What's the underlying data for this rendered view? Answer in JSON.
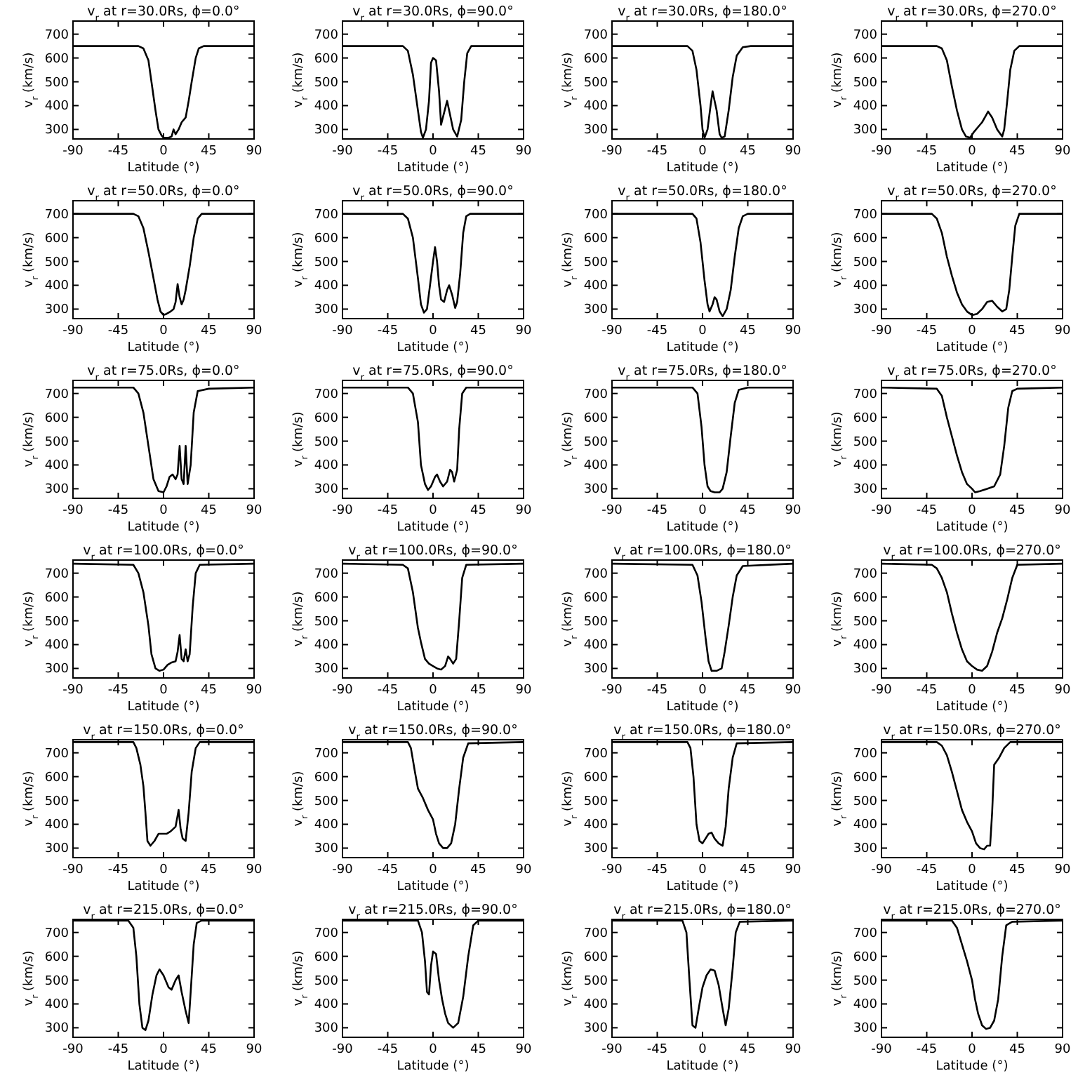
{
  "chart_data": [
    {
      "type": "line",
      "title": "v$_{r}$ at r=30.0Rs, ϕ=0.0°",
      "xlabel": "Latitude (°)",
      "ylabel": "v$_{r}$ (km/s)",
      "xlim": [
        -90,
        90
      ],
      "ylim": [
        260,
        755
      ],
      "xticks": [
        -90,
        -45,
        0,
        45,
        90
      ],
      "yticks": [
        300,
        400,
        500,
        600,
        700
      ],
      "color": "#000000",
      "x": [
        -90,
        -25,
        -20,
        -15,
        -12,
        -8,
        -5,
        -2,
        0,
        5,
        8,
        10,
        12,
        15,
        18,
        22,
        25,
        28,
        32,
        35,
        40,
        90
      ],
      "values": [
        650,
        650,
        640,
        590,
        500,
        380,
        300,
        275,
        265,
        265,
        270,
        300,
        280,
        300,
        330,
        350,
        420,
        500,
        600,
        640,
        650,
        650
      ]
    },
    {
      "type": "line",
      "title": "v$_{r}$ at r=30.0Rs, ϕ=90.0°",
      "xlabel": "Latitude (°)",
      "ylabel": "v$_{r}$ (km/s)",
      "xlim": [
        -90,
        90
      ],
      "ylim": [
        260,
        755
      ],
      "xticks": [
        -90,
        -45,
        0,
        45,
        90
      ],
      "yticks": [
        300,
        400,
        500,
        600,
        700
      ],
      "color": "#000000",
      "x": [
        -90,
        -30,
        -25,
        -20,
        -15,
        -12,
        -10,
        -7,
        -4,
        -2,
        0,
        3,
        6,
        8,
        11,
        14,
        17,
        20,
        24,
        28,
        31,
        34,
        38,
        90
      ],
      "values": [
        650,
        650,
        630,
        530,
        380,
        290,
        265,
        300,
        420,
        580,
        600,
        590,
        460,
        320,
        370,
        420,
        360,
        300,
        270,
        340,
        500,
        620,
        650,
        650
      ]
    },
    {
      "type": "line",
      "title": "v$_{r}$ at r=30.0Rs, ϕ=180.0°",
      "xlabel": "Latitude (°)",
      "ylabel": "v$_{r}$ (km/s)",
      "xlim": [
        -90,
        90
      ],
      "ylim": [
        260,
        755
      ],
      "xticks": [
        -90,
        -45,
        0,
        45,
        90
      ],
      "yticks": [
        300,
        400,
        500,
        600,
        700
      ],
      "color": "#000000",
      "x": [
        -90,
        -15,
        -10,
        -6,
        -2,
        0,
        2,
        5,
        8,
        10,
        12,
        14,
        17,
        19,
        22,
        26,
        30,
        34,
        40,
        48,
        90
      ],
      "values": [
        650,
        650,
        630,
        550,
        400,
        300,
        265,
        300,
        400,
        460,
        420,
        380,
        280,
        265,
        270,
        380,
        520,
        610,
        645,
        650,
        650
      ]
    },
    {
      "type": "line",
      "title": "v$_{r}$ at r=30.0Rs, ϕ=270.0°",
      "xlabel": "Latitude (°)",
      "ylabel": "v$_{r}$ (km/s)",
      "xlim": [
        -90,
        90
      ],
      "ylim": [
        260,
        755
      ],
      "xticks": [
        -90,
        -45,
        0,
        45,
        90
      ],
      "yticks": [
        300,
        400,
        500,
        600,
        700
      ],
      "color": "#000000",
      "x": [
        -90,
        -35,
        -30,
        -25,
        -20,
        -15,
        -10,
        -6,
        -2,
        2,
        6,
        10,
        14,
        16,
        20,
        25,
        30,
        32,
        35,
        38,
        42,
        47,
        90
      ],
      "values": [
        650,
        650,
        640,
        590,
        480,
        380,
        300,
        270,
        265,
        290,
        310,
        330,
        360,
        375,
        350,
        300,
        270,
        300,
        420,
        550,
        630,
        650,
        650
      ]
    },
    {
      "type": "line",
      "title": "v$_{r}$ at r=50.0Rs, ϕ=0.0°",
      "xlabel": "Latitude (°)",
      "ylabel": "v$_{r}$ (km/s)",
      "xlim": [
        -90,
        90
      ],
      "ylim": [
        260,
        755
      ],
      "xticks": [
        -90,
        -45,
        0,
        45,
        90
      ],
      "yticks": [
        300,
        400,
        500,
        600,
        700
      ],
      "color": "#000000",
      "x": [
        -90,
        -30,
        -25,
        -20,
        -15,
        -10,
        -6,
        -3,
        0,
        3,
        7,
        10,
        12,
        14,
        16,
        18,
        20,
        22,
        26,
        30,
        34,
        38,
        90
      ],
      "values": [
        700,
        700,
        690,
        640,
        540,
        430,
        340,
        290,
        275,
        280,
        290,
        300,
        330,
        405,
        350,
        320,
        340,
        380,
        480,
        600,
        680,
        700,
        700
      ]
    },
    {
      "type": "line",
      "title": "v$_{r}$ at r=50.0Rs, ϕ=90.0°",
      "xlabel": "Latitude (°)",
      "ylabel": "v$_{r}$ (km/s)",
      "xlim": [
        -90,
        90
      ],
      "ylim": [
        260,
        755
      ],
      "xticks": [
        -90,
        -45,
        0,
        45,
        90
      ],
      "yticks": [
        300,
        400,
        500,
        600,
        700
      ],
      "color": "#000000",
      "x": [
        -90,
        -30,
        -25,
        -20,
        -15,
        -12,
        -9,
        -6,
        -3,
        0,
        2,
        4,
        6,
        8,
        11,
        14,
        16,
        19,
        22,
        24,
        27,
        30,
        33,
        37,
        90
      ],
      "values": [
        700,
        700,
        680,
        600,
        430,
        320,
        285,
        300,
        400,
        500,
        560,
        500,
        400,
        340,
        330,
        380,
        400,
        360,
        305,
        330,
        450,
        620,
        690,
        700,
        700
      ]
    },
    {
      "type": "line",
      "title": "v$_{r}$ at r=50.0Rs, ϕ=180.0°",
      "xlabel": "Latitude (°)",
      "ylabel": "v$_{r}$ (km/s)",
      "xlim": [
        -90,
        90
      ],
      "ylim": [
        260,
        755
      ],
      "xticks": [
        -90,
        -45,
        0,
        45,
        90
      ],
      "yticks": [
        300,
        400,
        500,
        600,
        700
      ],
      "color": "#000000",
      "x": [
        -90,
        -10,
        -6,
        -2,
        2,
        5,
        7,
        10,
        12,
        14,
        17,
        20,
        24,
        28,
        32,
        36,
        40,
        45,
        90
      ],
      "values": [
        700,
        700,
        680,
        580,
        420,
        320,
        290,
        320,
        350,
        340,
        290,
        270,
        300,
        380,
        520,
        640,
        690,
        700,
        700
      ]
    },
    {
      "type": "line",
      "title": "v$_{r}$ at r=50.0Rs, ϕ=270.0°",
      "xlabel": "Latitude (°)",
      "ylabel": "v$_{r}$ (km/s)",
      "xlim": [
        -90,
        90
      ],
      "ylim": [
        260,
        755
      ],
      "xticks": [
        -90,
        -45,
        0,
        45,
        90
      ],
      "yticks": [
        300,
        400,
        500,
        600,
        700
      ],
      "color": "#000000",
      "x": [
        -90,
        -40,
        -35,
        -30,
        -25,
        -20,
        -15,
        -10,
        -5,
        0,
        5,
        10,
        15,
        20,
        25,
        30,
        34,
        37,
        40,
        43,
        47,
        90
      ],
      "values": [
        700,
        700,
        680,
        620,
        520,
        440,
        370,
        320,
        290,
        275,
        280,
        300,
        330,
        335,
        310,
        290,
        300,
        380,
        520,
        650,
        700,
        700
      ]
    },
    {
      "type": "line",
      "title": "v$_{r}$ at r=75.0Rs, ϕ=0.0°",
      "xlabel": "Latitude (°)",
      "ylabel": "v$_{r}$ (km/s)",
      "xlim": [
        -90,
        90
      ],
      "ylim": [
        260,
        755
      ],
      "xticks": [
        -90,
        -45,
        0,
        45,
        90
      ],
      "yticks": [
        300,
        400,
        500,
        600,
        700
      ],
      "color": "#000000",
      "x": [
        -90,
        -30,
        -25,
        -20,
        -15,
        -10,
        -5,
        0,
        3,
        6,
        9,
        12,
        14,
        16,
        18,
        20,
        22,
        24,
        27,
        30,
        34,
        45,
        90
      ],
      "values": [
        725,
        725,
        700,
        620,
        480,
        340,
        290,
        285,
        310,
        350,
        360,
        340,
        360,
        480,
        340,
        320,
        480,
        320,
        400,
        620,
        710,
        720,
        725
      ]
    },
    {
      "type": "line",
      "title": "v$_{r}$ at r=75.0Rs, ϕ=90.0°",
      "xlabel": "Latitude (°)",
      "ylabel": "v$_{r}$ (km/s)",
      "xlim": [
        -90,
        90
      ],
      "ylim": [
        260,
        755
      ],
      "xticks": [
        -90,
        -45,
        0,
        45,
        90
      ],
      "yticks": [
        300,
        400,
        500,
        600,
        700
      ],
      "color": "#000000",
      "x": [
        -90,
        -25,
        -20,
        -15,
        -12,
        -8,
        -5,
        -2,
        2,
        4,
        7,
        10,
        14,
        17,
        19,
        21,
        24,
        26,
        29,
        33,
        90
      ],
      "values": [
        725,
        725,
        700,
        580,
        400,
        320,
        295,
        310,
        350,
        360,
        330,
        310,
        330,
        380,
        370,
        330,
        380,
        550,
        700,
        725,
        725
      ]
    },
    {
      "type": "line",
      "title": "v$_{r}$ at r=75.0Rs, ϕ=180.0°",
      "xlabel": "Latitude (°)",
      "ylabel": "v$_{r}$ (km/s)",
      "xlim": [
        -90,
        90
      ],
      "ylim": [
        260,
        755
      ],
      "xticks": [
        -90,
        -45,
        0,
        45,
        90
      ],
      "yticks": [
        300,
        400,
        500,
        600,
        700
      ],
      "color": "#000000",
      "x": [
        -90,
        -10,
        -5,
        -1,
        2,
        5,
        8,
        12,
        17,
        20,
        24,
        28,
        32,
        36,
        45,
        90
      ],
      "values": [
        725,
        725,
        700,
        560,
        400,
        310,
        290,
        285,
        285,
        300,
        370,
        520,
        660,
        715,
        725,
        725
      ]
    },
    {
      "type": "line",
      "title": "v$_{r}$ at r=75.0Rs, ϕ=270.0°",
      "xlabel": "Latitude (°)",
      "ylabel": "v$_{r}$ (km/s)",
      "xlim": [
        -90,
        90
      ],
      "ylim": [
        260,
        755
      ],
      "xticks": [
        -90,
        -45,
        0,
        45,
        90
      ],
      "yticks": [
        300,
        400,
        500,
        600,
        700
      ],
      "color": "#000000",
      "x": [
        -90,
        -35,
        -30,
        -25,
        -20,
        -15,
        -10,
        -5,
        0,
        3,
        8,
        15,
        22,
        28,
        32,
        36,
        40,
        45,
        90
      ],
      "values": [
        725,
        720,
        690,
        600,
        520,
        440,
        370,
        320,
        300,
        285,
        290,
        300,
        310,
        360,
        480,
        640,
        710,
        720,
        725
      ]
    },
    {
      "type": "line",
      "title": "v$_{r}$ at r=100.0Rs, ϕ=0.0°",
      "xlabel": "Latitude (°)",
      "ylabel": "v$_{r}$ (km/s)",
      "xlim": [
        -90,
        90
      ],
      "ylim": [
        260,
        755
      ],
      "xticks": [
        -90,
        -45,
        0,
        45,
        90
      ],
      "yticks": [
        300,
        400,
        500,
        600,
        700
      ],
      "color": "#000000",
      "x": [
        -90,
        -30,
        -25,
        -20,
        -15,
        -12,
        -8,
        -4,
        0,
        4,
        8,
        12,
        14,
        16,
        18,
        20,
        22,
        24,
        26,
        29,
        32,
        36,
        90
      ],
      "values": [
        740,
        735,
        700,
        620,
        480,
        360,
        300,
        290,
        295,
        315,
        325,
        330,
        370,
        440,
        340,
        330,
        380,
        330,
        360,
        560,
        700,
        735,
        740
      ]
    },
    {
      "type": "line",
      "title": "v$_{r}$ at r=100.0Rs, ϕ=90.0°",
      "xlabel": "Latitude (°)",
      "ylabel": "v$_{r}$ (km/s)",
      "xlim": [
        -90,
        90
      ],
      "ylim": [
        260,
        755
      ],
      "xticks": [
        -90,
        -45,
        0,
        45,
        90
      ],
      "yticks": [
        300,
        400,
        500,
        600,
        700
      ],
      "color": "#000000",
      "x": [
        -90,
        -30,
        -25,
        -20,
        -15,
        -12,
        -8,
        -4,
        0,
        4,
        8,
        12,
        15,
        17,
        20,
        23,
        26,
        29,
        33,
        90
      ],
      "values": [
        740,
        735,
        720,
        620,
        470,
        410,
        340,
        320,
        310,
        300,
        295,
        310,
        350,
        340,
        320,
        340,
        500,
        680,
        735,
        740
      ]
    },
    {
      "type": "line",
      "title": "v$_{r}$ at r=100.0Rs, ϕ=180.0°",
      "xlabel": "Latitude (°)",
      "ylabel": "v$_{r}$ (km/s)",
      "xlim": [
        -90,
        90
      ],
      "ylim": [
        260,
        755
      ],
      "xticks": [
        -90,
        -45,
        0,
        45,
        90
      ],
      "yticks": [
        300,
        400,
        500,
        600,
        700
      ],
      "color": "#000000",
      "x": [
        -90,
        -10,
        -5,
        -1,
        3,
        6,
        9,
        14,
        19,
        22,
        26,
        30,
        34,
        40,
        90
      ],
      "values": [
        740,
        735,
        690,
        580,
        430,
        330,
        290,
        290,
        300,
        370,
        480,
        600,
        690,
        730,
        740
      ]
    },
    {
      "type": "line",
      "title": "v$_{r}$ at r=100.0Rs, ϕ=270.0°",
      "xlabel": "Latitude (°)",
      "ylabel": "v$_{r}$ (km/s)",
      "xlim": [
        -90,
        90
      ],
      "ylim": [
        260,
        755
      ],
      "xticks": [
        -90,
        -45,
        0,
        45,
        90
      ],
      "yticks": [
        300,
        400,
        500,
        600,
        700
      ],
      "color": "#000000",
      "x": [
        -90,
        -40,
        -35,
        -30,
        -25,
        -20,
        -15,
        -10,
        -5,
        0,
        5,
        10,
        15,
        20,
        25,
        30,
        35,
        40,
        45,
        90
      ],
      "values": [
        740,
        735,
        720,
        680,
        620,
        530,
        450,
        380,
        330,
        310,
        295,
        290,
        310,
        370,
        450,
        510,
        590,
        680,
        735,
        740
      ]
    },
    {
      "type": "line",
      "title": "v$_{r}$ at r=150.0Rs, ϕ=0.0°",
      "xlabel": "Latitude (°)",
      "ylabel": "v$_{r}$ (km/s)",
      "xlim": [
        -90,
        90
      ],
      "ylim": [
        260,
        755
      ],
      "xticks": [
        -90,
        -45,
        0,
        45,
        90
      ],
      "yticks": [
        300,
        400,
        500,
        600,
        700
      ],
      "color": "#000000",
      "x": [
        -90,
        -30,
        -27,
        -23,
        -20,
        -18,
        -16,
        -13,
        -9,
        -5,
        -1,
        3,
        7,
        12,
        15,
        17,
        19,
        22,
        25,
        28,
        32,
        36,
        90
      ],
      "values": [
        745,
        745,
        720,
        650,
        560,
        450,
        330,
        310,
        330,
        360,
        360,
        360,
        370,
        390,
        460,
        380,
        340,
        330,
        450,
        620,
        720,
        745,
        745
      ]
    },
    {
      "type": "line",
      "title": "v$_{r}$ at r=150.0Rs, ϕ=90.0°",
      "xlabel": "Latitude (°)",
      "ylabel": "v$_{r}$ (km/s)",
      "xlim": [
        -90,
        90
      ],
      "ylim": [
        260,
        755
      ],
      "xticks": [
        -90,
        -45,
        0,
        45,
        90
      ],
      "yticks": [
        300,
        400,
        500,
        600,
        700
      ],
      "color": "#000000",
      "x": [
        -90,
        -25,
        -22,
        -18,
        -15,
        -10,
        -5,
        0,
        3,
        6,
        10,
        14,
        18,
        22,
        26,
        30,
        35,
        90
      ],
      "values": [
        745,
        745,
        720,
        620,
        550,
        510,
        460,
        420,
        360,
        320,
        300,
        300,
        320,
        400,
        550,
        680,
        740,
        745
      ]
    },
    {
      "type": "line",
      "title": "v$_{r}$ at r=150.0Rs, ϕ=180.0°",
      "xlabel": "Latitude (°)",
      "ylabel": "v$_{r}$ (km/s)",
      "xlim": [
        -90,
        90
      ],
      "ylim": [
        260,
        755
      ],
      "xticks": [
        -90,
        -45,
        0,
        45,
        90
      ],
      "yticks": [
        300,
        400,
        500,
        600,
        700
      ],
      "color": "#000000",
      "x": [
        -90,
        -15,
        -12,
        -9,
        -6,
        -3,
        0,
        3,
        6,
        9,
        12,
        16,
        20,
        23,
        26,
        30,
        34,
        90
      ],
      "values": [
        745,
        745,
        720,
        600,
        400,
        330,
        320,
        340,
        360,
        365,
        340,
        320,
        310,
        390,
        550,
        680,
        740,
        745
      ]
    },
    {
      "type": "line",
      "title": "v$_{r}$ at r=150.0Rs, ϕ=270.0°",
      "xlabel": "Latitude (°)",
      "ylabel": "v$_{r}$ (km/s)",
      "xlim": [
        -90,
        90
      ],
      "ylim": [
        260,
        755
      ],
      "xticks": [
        -90,
        -45,
        0,
        45,
        90
      ],
      "yticks": [
        300,
        400,
        500,
        600,
        700
      ],
      "color": "#000000",
      "x": [
        -90,
        -35,
        -30,
        -25,
        -20,
        -15,
        -10,
        -5,
        0,
        4,
        8,
        12,
        15,
        18,
        20,
        22,
        27,
        32,
        38,
        90
      ],
      "values": [
        745,
        745,
        730,
        690,
        620,
        540,
        460,
        410,
        370,
        320,
        300,
        295,
        310,
        310,
        450,
        650,
        680,
        720,
        745,
        745
      ]
    },
    {
      "type": "line",
      "title": "v$_{r}$ at r=215.0Rs, ϕ=0.0°",
      "xlabel": "Latitude (°)",
      "ylabel": "v$_{r}$ (km/s)",
      "xlim": [
        -90,
        90
      ],
      "ylim": [
        260,
        755
      ],
      "xticks": [
        -90,
        -45,
        0,
        45,
        90
      ],
      "yticks": [
        300,
        400,
        500,
        600,
        700
      ],
      "color": "#000000",
      "x": [
        -90,
        -35,
        -30,
        -27,
        -24,
        -21,
        -18,
        -15,
        -11,
        -7,
        -4,
        0,
        5,
        8,
        12,
        15,
        18,
        22,
        25,
        27,
        30,
        33,
        38,
        90
      ],
      "values": [
        750,
        750,
        720,
        600,
        400,
        300,
        290,
        330,
        440,
        520,
        545,
        520,
        470,
        460,
        500,
        520,
        450,
        370,
        320,
        450,
        650,
        740,
        750,
        750
      ]
    },
    {
      "type": "line",
      "title": "v$_{r}$ at r=215.0Rs, ϕ=90.0°",
      "xlabel": "Latitude (°)",
      "ylabel": "v$_{r}$ (km/s)",
      "xlim": [
        -90,
        90
      ],
      "ylim": [
        260,
        755
      ],
      "xticks": [
        -90,
        -45,
        0,
        45,
        90
      ],
      "yticks": [
        300,
        400,
        500,
        600,
        700
      ],
      "color": "#000000",
      "x": [
        -90,
        -15,
        -11,
        -8,
        -6,
        -4,
        -2,
        0,
        3,
        6,
        9,
        12,
        15,
        20,
        25,
        30,
        35,
        40,
        45,
        90
      ],
      "values": [
        750,
        750,
        700,
        580,
        450,
        440,
        560,
        620,
        610,
        500,
        420,
        360,
        320,
        300,
        320,
        430,
        600,
        730,
        750,
        750
      ]
    },
    {
      "type": "line",
      "title": "v$_{r}$ at r=215.0Rs, ϕ=180.0°",
      "xlabel": "Latitude (°)",
      "ylabel": "v$_{r}$ (km/s)",
      "xlim": [
        -90,
        90
      ],
      "ylim": [
        260,
        755
      ],
      "xticks": [
        -90,
        -45,
        0,
        45,
        90
      ],
      "yticks": [
        300,
        400,
        500,
        600,
        700
      ],
      "color": "#000000",
      "x": [
        -90,
        -20,
        -16,
        -13,
        -10,
        -7,
        -3,
        0,
        4,
        8,
        12,
        16,
        20,
        23,
        26,
        30,
        33,
        37,
        90
      ],
      "values": [
        750,
        750,
        700,
        500,
        310,
        300,
        400,
        470,
        520,
        545,
        540,
        480,
        380,
        310,
        380,
        550,
        700,
        745,
        750
      ]
    },
    {
      "type": "line",
      "title": "v$_{r}$ at r=215.0Rs, ϕ=270.0°",
      "xlabel": "Latitude (°)",
      "ylabel": "v$_{r}$ (km/s)",
      "xlim": [
        -90,
        90
      ],
      "ylim": [
        260,
        755
      ],
      "xticks": [
        -90,
        -45,
        0,
        45,
        90
      ],
      "yticks": [
        300,
        400,
        500,
        600,
        700
      ],
      "color": "#000000",
      "x": [
        -90,
        -20,
        -15,
        -10,
        -5,
        0,
        3,
        6,
        10,
        14,
        18,
        22,
        26,
        30,
        34,
        40,
        90
      ],
      "values": [
        750,
        750,
        720,
        650,
        580,
        500,
        420,
        360,
        310,
        295,
        300,
        330,
        420,
        600,
        730,
        745,
        750
      ]
    }
  ]
}
